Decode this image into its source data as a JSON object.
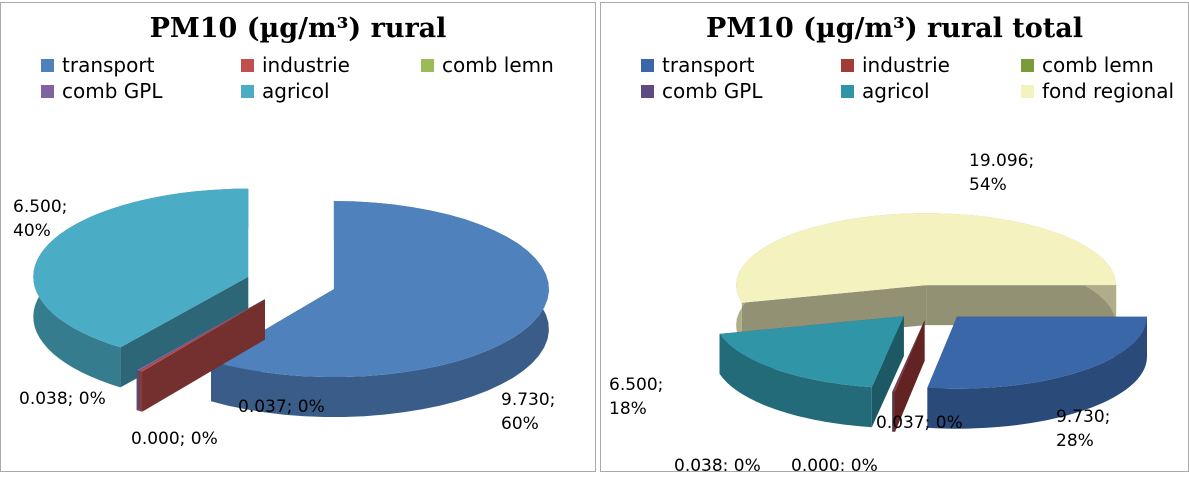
{
  "chart_data": [
    {
      "type": "pie",
      "title": "PM10 (µg/m³) rural",
      "categories": [
        "transport",
        "industrie",
        "comb lemn",
        "comb GPL",
        "agricol"
      ],
      "values": [
        9.73,
        0.037,
        0.0,
        0.038,
        6.5
      ],
      "value_labels": [
        "9.730; 60%",
        "0.037; 0%",
        "0.000; 0%",
        "0.038; 0%",
        "6.500; 40%"
      ],
      "colors": [
        "#4f81bd",
        "#c0504d",
        "#9bbb59",
        "#8064a2",
        "#4bacc6"
      ]
    },
    {
      "type": "pie",
      "title": "PM10 (µg/m³) rural total",
      "categories": [
        "transport",
        "industrie",
        "comb lemn",
        "comb GPL",
        "agricol",
        "fond regional"
      ],
      "values": [
        9.73,
        0.037,
        0.0,
        0.038,
        6.5,
        19.096
      ],
      "value_labels": [
        "9.730; 28%",
        "0.037; 0%",
        "0.000; 0%",
        "0.038; 0%",
        "6.500; 18%",
        "19.096; 54%"
      ],
      "colors": [
        "#3a67a8",
        "#a33b38",
        "#7a9a3c",
        "#604a84",
        "#3195a8",
        "#f4f2bf"
      ]
    }
  ]
}
